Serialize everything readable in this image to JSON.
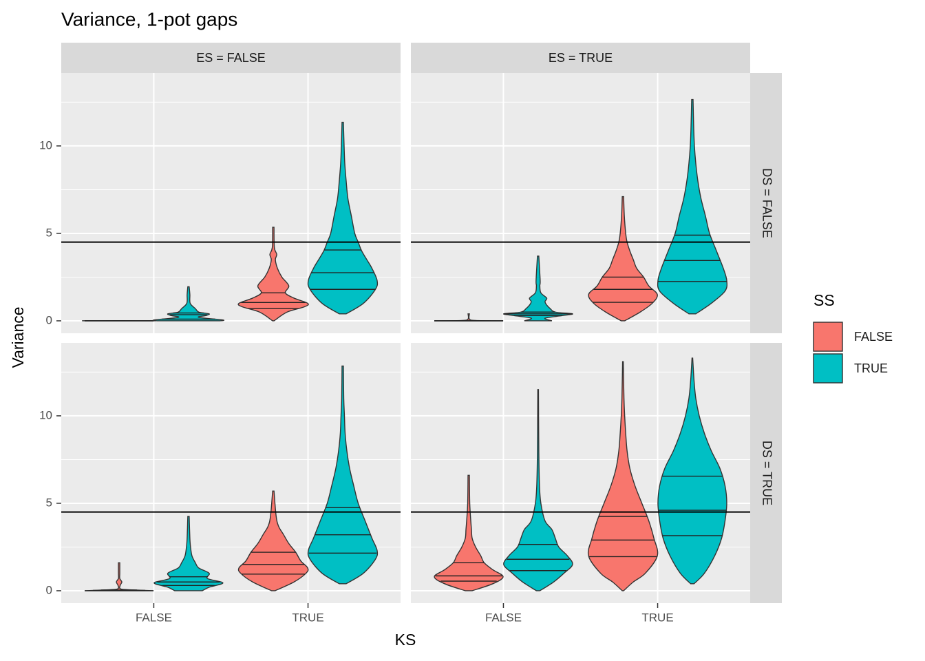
{
  "chart_data": {
    "type": "violin",
    "title": "Variance, 1-pot gaps",
    "x_label": "KS",
    "y_label": "Variance",
    "categories": [
      "FALSE",
      "TRUE"
    ],
    "legend_title": "SS",
    "series": [
      {
        "name": "FALSE",
        "color": "#F8766D"
      },
      {
        "name": "TRUE",
        "color": "#00BFC4"
      }
    ],
    "col_facets": [
      "ES = FALSE",
      "ES = TRUE"
    ],
    "row_facets": [
      "DS = FALSE",
      "DS = TRUE"
    ],
    "ylim": [
      -0.71,
      14.17
    ],
    "yticks": [
      0,
      5,
      10
    ],
    "hline": 4.5,
    "panels": [
      [
        {
          "violins": [
            [
              {
                "y": [
                  0,
                  0.005,
                  0.01
                ],
                "density": [
                  1,
                  1,
                  0.1
                ],
                "quantiles": [
                  0,
                  0,
                  0
                ]
              },
              {
                "y": [
                  0,
                  0.05,
                  0.2,
                  0.3,
                  0.4,
                  0.5,
                  0.7,
                  1.0,
                  1.5,
                  1.95
                ],
                "density": [
                  0.9,
                  1,
                  0.3,
                  0.5,
                  0.6,
                  0.3,
                  0.2,
                  0.05,
                  0.04,
                  0.02
                ],
                "quantiles": [
                  0.1,
                  0.35,
                  0.45
                ]
              }
            ],
            [
              {
                "y": [
                  0,
                  0.5,
                  0.8,
                  1.0,
                  1.3,
                  1.6,
                  2.0,
                  2.5,
                  3.0,
                  3.5,
                  3.8,
                  4.2,
                  5.35
                ],
                "density": [
                  0.02,
                  0.4,
                  0.9,
                  1,
                  0.6,
                  0.35,
                  0.45,
                  0.25,
                  0.12,
                  0.06,
                  0.1,
                  0.03,
                  0.02
                ],
                "quantiles": [
                  0.7,
                  1.05,
                  1.6
                ]
              },
              {
                "y": [
                  0.4,
                  1,
                  1.8,
                  2.3,
                  3,
                  3.5,
                  4,
                  4.5,
                  5,
                  6,
                  7,
                  8,
                  9,
                  10,
                  11.35
                ],
                "density": [
                  0.1,
                  0.6,
                  0.95,
                  1,
                  0.85,
                  0.7,
                  0.55,
                  0.45,
                  0.35,
                  0.25,
                  0.15,
                  0.1,
                  0.06,
                  0.04,
                  0.02
                ],
                "quantiles": [
                  1.8,
                  2.75,
                  4.05
                ]
              }
            ]
          ]
        },
        {
          "violins": [
            [
              {
                "y": [
                  0,
                  0.02,
                  0.1,
                  0.4
                ],
                "density": [
                  1,
                  0.2,
                  0.02,
                  0.02
                ],
                "quantiles": [
                  0,
                  0,
                  0
                ]
              },
              {
                "y": [
                  0,
                  0.15,
                  0.3,
                  0.4,
                  0.5,
                  0.7,
                  0.9,
                  1.1,
                  1.3,
                  1.6,
                  2.0,
                  2.3,
                  3.7
                ],
                "density": [
                  0.4,
                  0.2,
                  0.7,
                  1,
                  0.5,
                  0.35,
                  0.25,
                  0.2,
                  0.25,
                  0.08,
                  0.05,
                  0.06,
                  0.02
                ],
                "quantiles": [
                  0.3,
                  0.4,
                  0.5
                ]
              }
            ],
            [
              {
                "y": [
                  0,
                  0.5,
                  1.0,
                  1.5,
                  2.0,
                  2.5,
                  3.0,
                  3.5,
                  4,
                  4.5,
                  5,
                  6,
                  7.1
                ],
                "density": [
                  0.05,
                  0.5,
                  0.85,
                  1,
                  0.75,
                  0.6,
                  0.4,
                  0.3,
                  0.2,
                  0.12,
                  0.08,
                  0.04,
                  0.02
                ],
                "quantiles": [
                  1.06,
                  1.8,
                  2.5
                ]
              },
              {
                "y": [
                  0.4,
                  1,
                  1.7,
                  2.3,
                  3,
                  4,
                  5,
                  6,
                  7,
                  8,
                  9,
                  10,
                  11,
                  12.65
                ],
                "density": [
                  0.1,
                  0.55,
                  0.95,
                  1,
                  0.9,
                  0.7,
                  0.5,
                  0.38,
                  0.25,
                  0.16,
                  0.1,
                  0.06,
                  0.04,
                  0.02
                ],
                "quantiles": [
                  2.25,
                  3.45,
                  4.9
                ]
              }
            ]
          ]
        }
      ],
      [
        {
          "violins": [
            [
              {
                "y": [
                  0,
                  0.05,
                  0.1,
                  0.3,
                  0.5,
                  0.7,
                  1.0,
                  1.6
                ],
                "density": [
                  1,
                  0.4,
                  0.05,
                  0.03,
                  0.08,
                  0.02,
                  0.02,
                  0.02
                ],
                "quantiles": [
                  0,
                  0.02,
                  0.04
                ]
              },
              {
                "y": [
                  0,
                  0.2,
                  0.45,
                  0.7,
                  1.0,
                  1.3,
                  1.6,
                  2,
                  2.5,
                  3,
                  4.25
                ],
                "density": [
                  0.4,
                  0.6,
                  1,
                  0.55,
                  0.6,
                  0.3,
                  0.2,
                  0.1,
                  0.06,
                  0.04,
                  0.02
                ],
                "quantiles": [
                  0.3,
                  0.5,
                  0.8
                ]
              }
            ],
            [
              {
                "y": [
                  0,
                  0.5,
                  1.0,
                  1.3,
                  1.7,
                  2.2,
                  2.7,
                  3.2,
                  3.7,
                  4.3,
                  5.7
                ],
                "density": [
                  0.05,
                  0.6,
                  0.95,
                  1,
                  0.8,
                  0.65,
                  0.45,
                  0.3,
                  0.15,
                  0.08,
                  0.02
                ],
                "quantiles": [
                  0.95,
                  1.5,
                  2.2
                ]
              },
              {
                "y": [
                  0.4,
                  1,
                  1.8,
                  2.3,
                  3,
                  4,
                  5,
                  6,
                  7,
                  8,
                  9,
                  10,
                  11,
                  12.85
                ],
                "density": [
                  0.1,
                  0.6,
                  0.95,
                  1,
                  0.85,
                  0.65,
                  0.45,
                  0.32,
                  0.2,
                  0.12,
                  0.07,
                  0.05,
                  0.03,
                  0.02
                ],
                "quantiles": [
                  2.15,
                  3.2,
                  4.75
                ]
              }
            ]
          ]
        },
        {
          "violins": [
            [
              {
                "y": [
                  0,
                  0.4,
                  0.8,
                  1.2,
                  1.6,
                  2,
                  2.5,
                  3,
                  3.5,
                  4,
                  5,
                  6.6
                ],
                "density": [
                  0.1,
                  0.7,
                  1,
                  0.7,
                  0.45,
                  0.35,
                  0.2,
                  0.1,
                  0.08,
                  0.06,
                  0.03,
                  0.02
                ],
                "quantiles": [
                  0.55,
                  0.85,
                  1.6
                ]
              },
              {
                "y": [
                  0,
                  0.5,
                  1.0,
                  1.5,
                  2.0,
                  2.5,
                  3.0,
                  3.5,
                  4,
                  5,
                  6,
                  8,
                  11.5
                ],
                "density": [
                  0.05,
                  0.45,
                  0.75,
                  1,
                  0.85,
                  0.6,
                  0.5,
                  0.4,
                  0.2,
                  0.08,
                  0.04,
                  0.02,
                  0.01
                ],
                "quantiles": [
                  1.15,
                  1.8,
                  2.65
                ]
              }
            ],
            [
              {
                "y": [
                  0,
                  0.5,
                  1,
                  2,
                  3,
                  4,
                  5,
                  6,
                  7,
                  8,
                  9,
                  10,
                  11,
                  13.1
                ],
                "density": [
                  0.02,
                  0.3,
                  0.65,
                  1,
                  0.9,
                  0.75,
                  0.55,
                  0.35,
                  0.2,
                  0.12,
                  0.08,
                  0.05,
                  0.03,
                  0.01
                ],
                "quantiles": [
                  1.95,
                  2.9,
                  4.25
                ]
              },
              {
                "y": [
                  0.4,
                  1,
                  2,
                  3,
                  4,
                  5,
                  6,
                  7,
                  8,
                  9,
                  10,
                  11,
                  12,
                  13.3
                ],
                "density": [
                  0.05,
                  0.35,
                  0.65,
                  0.85,
                  0.95,
                  1,
                  0.95,
                  0.8,
                  0.55,
                  0.35,
                  0.2,
                  0.1,
                  0.05,
                  0.01
                ],
                "quantiles": [
                  3.15,
                  4.6,
                  6.55
                ]
              }
            ]
          ]
        }
      ]
    ]
  }
}
